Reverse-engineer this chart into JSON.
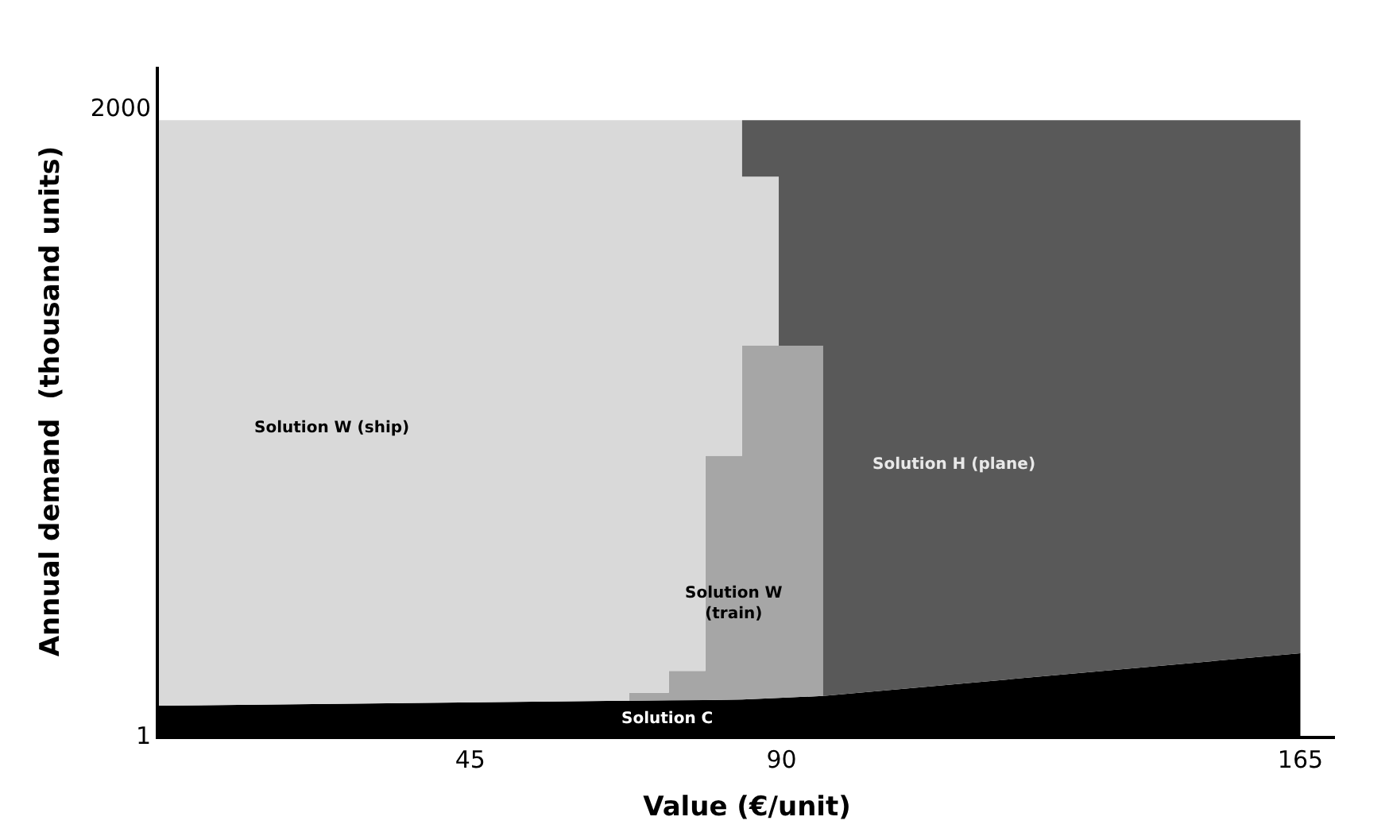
{
  "chart_data": {
    "type": "area",
    "stacked": true,
    "xlabel": "Value (€/unit)",
    "ylabel": "Annual demand  (thousand units)",
    "x": [
      0,
      68,
      68,
      73.7,
      73.7,
      79,
      79,
      84.3,
      84.3,
      89.6,
      89.6,
      96,
      96,
      165
    ],
    "series": [
      {
        "color": "#000000",
        "values": [
          96,
          112,
          112,
          113,
          113,
          114,
          114,
          116,
          116,
          121,
          121,
          127,
          127,
          263
        ]
      },
      {
        "color": "#a6a6a6",
        "values": [
          0,
          0,
          25,
          24,
          94,
          93,
          778,
          776,
          1126,
          1121,
          1121,
          1115,
          0,
          0
        ]
      },
      {
        "color": "#d9d9d9",
        "values": [
          1864,
          1848,
          1823,
          1823,
          1753,
          1753,
          1068,
          1068,
          538,
          538,
          0,
          0,
          0,
          0
        ]
      },
      {
        "color": "#595959",
        "values": [
          0,
          0,
          0,
          0,
          0,
          0,
          0,
          0,
          180,
          180,
          718,
          718,
          1833,
          1697
        ]
      }
    ],
    "annotations": [
      "Solution W (ship)",
      "Solution H (plane)",
      "Solution W\n(train)",
      "Solution C"
    ],
    "xlim": [
      0,
      170
    ],
    "xticks": [
      45,
      90,
      165
    ],
    "ylim": [
      0,
      2130
    ],
    "yticks": [
      1,
      2000
    ]
  }
}
